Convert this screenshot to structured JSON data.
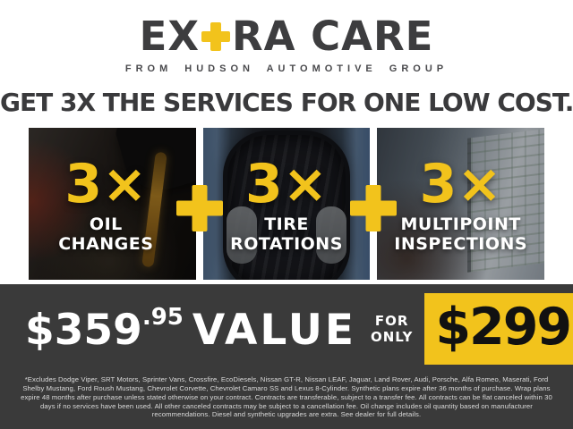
{
  "brand": {
    "logo_prefix": "EX",
    "logo_suffix": "RA CARE",
    "tagline": "FROM HUDSON AUTOMOTIVE GROUP"
  },
  "headline": "GET 3X THE SERVICES FOR ONE LOW COST.",
  "services": [
    {
      "multiplier": "3×",
      "label": "OIL CHANGES"
    },
    {
      "multiplier": "3×",
      "label": "TIRE ROTATIONS"
    },
    {
      "multiplier": "3×",
      "label": "MULTIPOINT INSPECTIONS"
    }
  ],
  "pricing": {
    "value_price": "$359",
    "value_cents": ".95",
    "value_label": "VALUE",
    "connector_line1": "FOR",
    "connector_line2": "ONLY",
    "sale_price": "$299!",
    "asterisk": "*"
  },
  "disclaimer": "*Excludes Dodge Viper, SRT Motors, Sprinter Vans, Crossfire, EcoDiesels, Nissan GT-R, Nissan LEAF, Jaguar, Land Rover, Audi, Porsche, Alfa Romeo, Maserati, Ford Shelby Mustang, Ford Roush Mustang, Chevrolet Corvette, Chevrolet Camaro SS and Lexus 8-Cylinder. Synthetic plans expire after 36 months of purchase. Wrap plans expire 48 months after purchase unless stated otherwise on your contract. Contracts are transferable, subject to a transfer fee. All contracts can be flat canceled within 30 days if no services have been used. All other canceled contracts may be subject to a cancellation fee. Oil change includes oil quantity based on manufacturer recommendations. Diesel and synthetic upgrades are extra. See dealer for full details.",
  "colors": {
    "accent_yellow": "#F2C31C",
    "charcoal": "#3A3A3A",
    "background": "#FFFFFF"
  }
}
